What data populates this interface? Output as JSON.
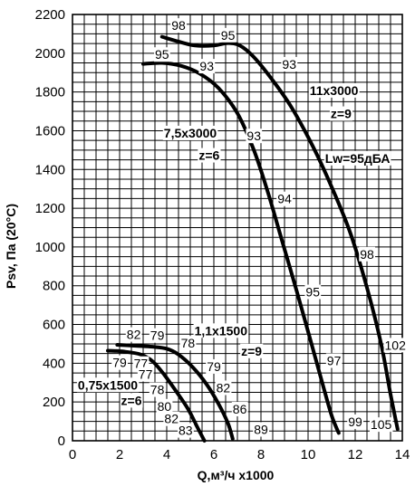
{
  "chart_data": {
    "type": "line",
    "xlabel": "Q,м³/ч x1000",
    "ylabel": "Psv, Па (20°C)",
    "xlim": [
      0,
      14
    ],
    "ylim": [
      0,
      2200
    ],
    "x_ticks": [
      0,
      2,
      4,
      6,
      8,
      10,
      12,
      14
    ],
    "y_ticks": [
      0,
      200,
      400,
      600,
      800,
      1000,
      1200,
      1400,
      1600,
      1800,
      2000,
      2200
    ],
    "grid": true,
    "series": [
      {
        "name": "11x3000 z=9",
        "points": [
          [
            3.8,
            2085
          ],
          [
            4.5,
            2060
          ],
          [
            5.2,
            2040
          ],
          [
            6.0,
            2040
          ],
          [
            6.6,
            2052
          ],
          [
            7.1,
            2040
          ],
          [
            7.7,
            1980
          ],
          [
            8.5,
            1860
          ],
          [
            9.3,
            1720
          ],
          [
            10.2,
            1520
          ],
          [
            11.0,
            1310
          ],
          [
            11.8,
            1070
          ],
          [
            12.5,
            790
          ],
          [
            13.1,
            500
          ],
          [
            13.5,
            240
          ],
          [
            13.8,
            60
          ]
        ]
      },
      {
        "name": "7,5x3000 z=6",
        "points": [
          [
            3.0,
            1945
          ],
          [
            3.8,
            1950
          ],
          [
            4.6,
            1935
          ],
          [
            5.4,
            1895
          ],
          [
            6.2,
            1820
          ],
          [
            7.0,
            1690
          ],
          [
            7.7,
            1500
          ],
          [
            8.3,
            1280
          ],
          [
            8.9,
            1030
          ],
          [
            9.5,
            780
          ],
          [
            10.1,
            520
          ],
          [
            10.6,
            300
          ],
          [
            11.0,
            130
          ],
          [
            11.3,
            40
          ]
        ]
      },
      {
        "name": "1,1x1500 z=9",
        "points": [
          [
            1.9,
            495
          ],
          [
            2.7,
            490
          ],
          [
            3.4,
            485
          ],
          [
            4.0,
            475
          ],
          [
            4.5,
            445
          ],
          [
            5.1,
            380
          ],
          [
            5.7,
            290
          ],
          [
            6.2,
            190
          ],
          [
            6.6,
            90
          ],
          [
            6.8,
            10
          ]
        ]
      },
      {
        "name": "0,75x1500 z=6",
        "points": [
          [
            1.5,
            465
          ],
          [
            2.2,
            460
          ],
          [
            2.9,
            445
          ],
          [
            3.4,
            410
          ],
          [
            3.9,
            340
          ],
          [
            4.4,
            255
          ],
          [
            4.9,
            165
          ],
          [
            5.3,
            70
          ],
          [
            5.6,
            0
          ]
        ]
      }
    ],
    "annotations": [
      {
        "text": "98",
        "x": 4.5,
        "y": 2120
      },
      {
        "text": "95",
        "x": 6.6,
        "y": 2070
      },
      {
        "text": "93",
        "x": 9.2,
        "y": 1920
      },
      {
        "text": "95",
        "x": 3.8,
        "y": 1970
      },
      {
        "text": "93",
        "x": 5.7,
        "y": 1910
      },
      {
        "text": "11x3000",
        "x": 11.1,
        "y": 1785,
        "bold": true
      },
      {
        "text": "z=9",
        "x": 11.4,
        "y": 1665,
        "bold": true
      },
      {
        "text": "7,5x3000",
        "x": 5.0,
        "y": 1565,
        "bold": true
      },
      {
        "text": "z=6",
        "x": 5.8,
        "y": 1450,
        "bold": true
      },
      {
        "text": "93",
        "x": 7.7,
        "y": 1550
      },
      {
        "text": "Lw=95дБА",
        "x": 12.1,
        "y": 1435,
        "bold": true
      },
      {
        "text": "94",
        "x": 9.0,
        "y": 1225
      },
      {
        "text": "98",
        "x": 12.5,
        "y": 940
      },
      {
        "text": "95",
        "x": 10.2,
        "y": 745
      },
      {
        "text": "82",
        "x": 2.6,
        "y": 525
      },
      {
        "text": "79",
        "x": 3.6,
        "y": 520
      },
      {
        "text": "78",
        "x": 4.9,
        "y": 480
      },
      {
        "text": "1,1x1500",
        "x": 6.3,
        "y": 545,
        "bold": true
      },
      {
        "text": "z=9",
        "x": 7.6,
        "y": 440,
        "bold": true
      },
      {
        "text": "102",
        "x": 13.7,
        "y": 470
      },
      {
        "text": "79",
        "x": 2.0,
        "y": 380
      },
      {
        "text": "77",
        "x": 2.9,
        "y": 375
      },
      {
        "text": "77",
        "x": 3.1,
        "y": 320
      },
      {
        "text": "79",
        "x": 6.0,
        "y": 360
      },
      {
        "text": "97",
        "x": 11.1,
        "y": 390
      },
      {
        "text": "0,75x1500",
        "x": 1.5,
        "y": 265,
        "bold": true
      },
      {
        "text": "78",
        "x": 3.6,
        "y": 240
      },
      {
        "text": "82",
        "x": 6.4,
        "y": 250
      },
      {
        "text": "z=6",
        "x": 2.5,
        "y": 185,
        "bold": true
      },
      {
        "text": "80",
        "x": 3.9,
        "y": 155
      },
      {
        "text": "86",
        "x": 7.1,
        "y": 140
      },
      {
        "text": "82",
        "x": 4.2,
        "y": 90
      },
      {
        "text": "83",
        "x": 4.8,
        "y": 30
      },
      {
        "text": "89",
        "x": 8.0,
        "y": 35
      },
      {
        "text": "99",
        "x": 12.0,
        "y": 75
      },
      {
        "text": "105",
        "x": 13.1,
        "y": 60
      }
    ]
  }
}
